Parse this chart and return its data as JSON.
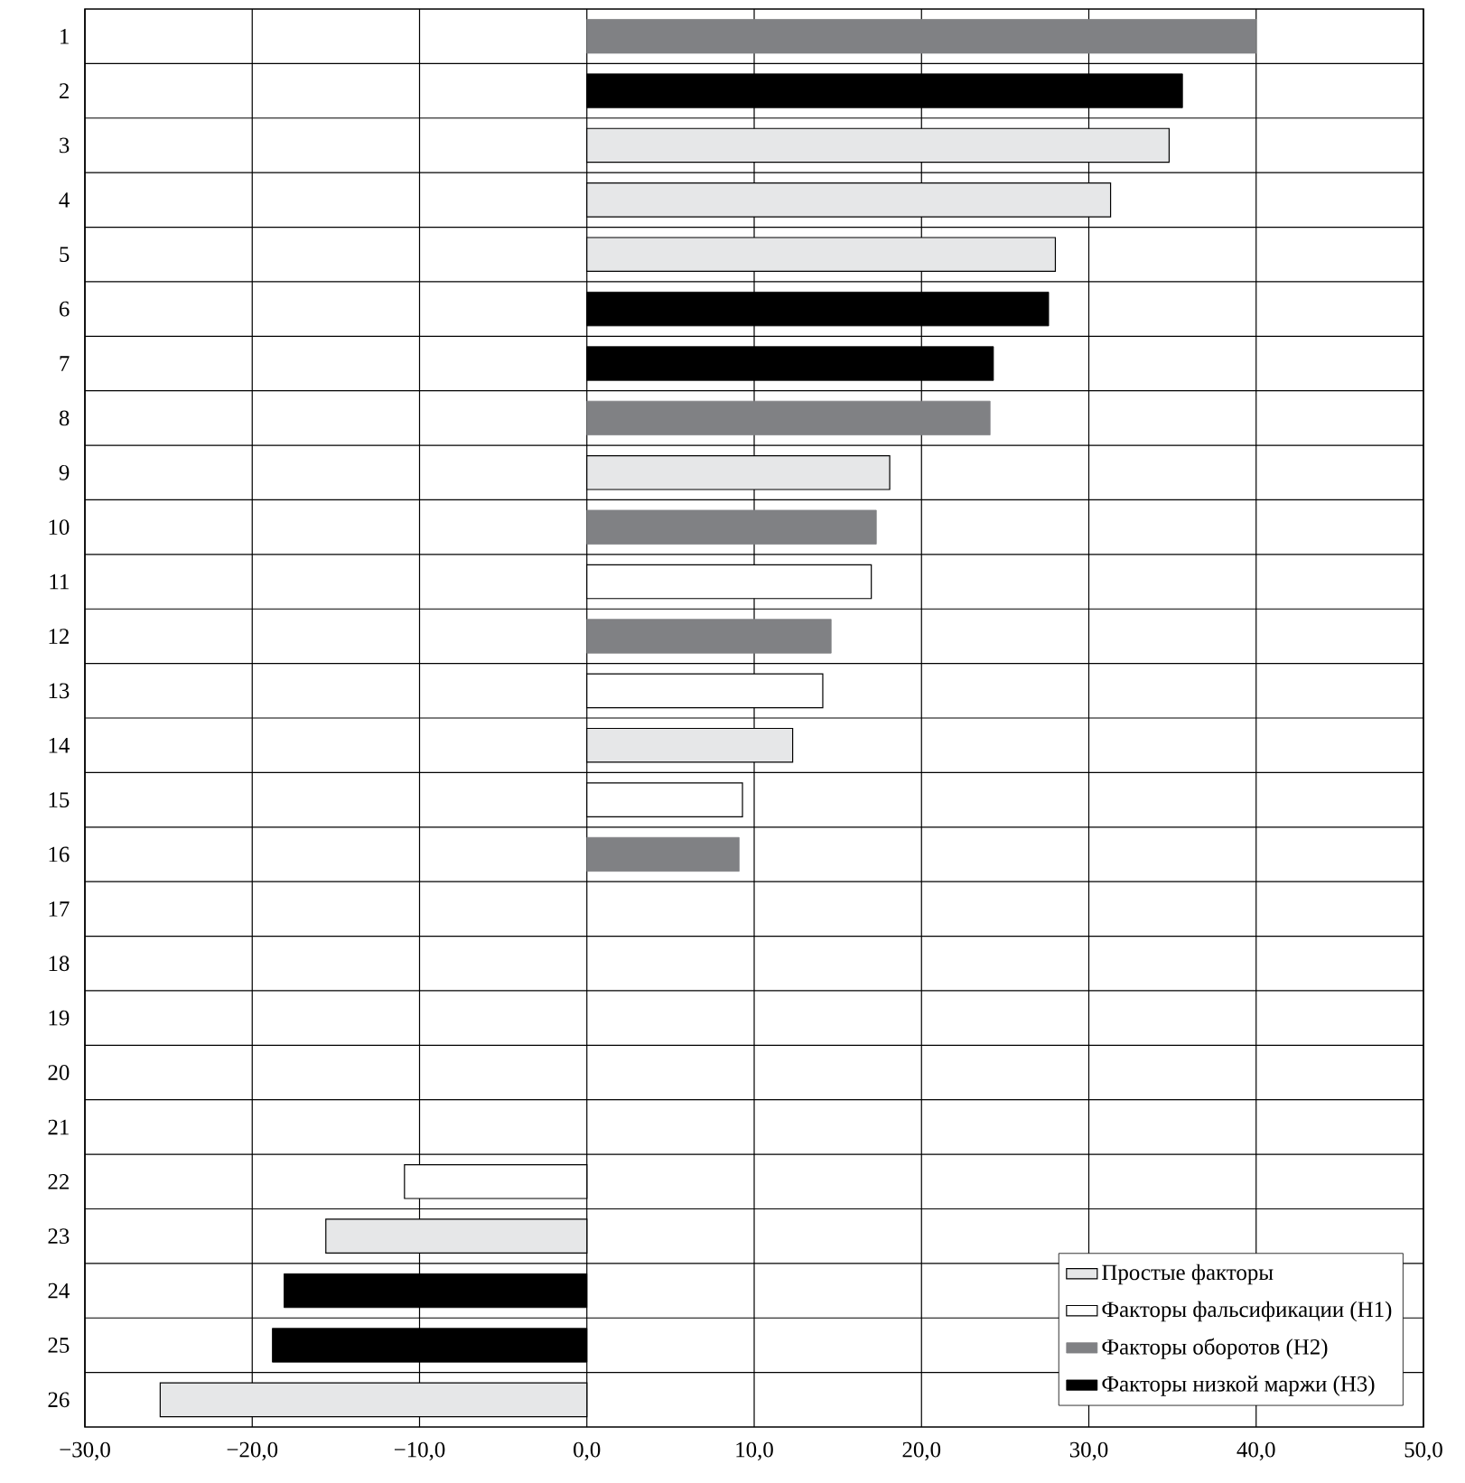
{
  "chart_data": {
    "type": "bar",
    "orientation": "horizontal",
    "categories": [
      "1",
      "2",
      "3",
      "4",
      "5",
      "6",
      "7",
      "8",
      "9",
      "10",
      "11",
      "12",
      "13",
      "14",
      "15",
      "16",
      "17",
      "18",
      "19",
      "20",
      "21",
      "22",
      "23",
      "24",
      "25",
      "26"
    ],
    "series": [
      {
        "name": "Простые факторы",
        "color": "#e6e7e8",
        "values": [
          null,
          null,
          34.8,
          31.3,
          28.0,
          null,
          null,
          null,
          18.1,
          null,
          null,
          null,
          null,
          12.3,
          null,
          null,
          null,
          null,
          null,
          null,
          null,
          null,
          -15.6,
          null,
          null,
          -25.5
        ]
      },
      {
        "name": "Факторы фальсификации (H1)",
        "color": "#ffffff",
        "values": [
          null,
          null,
          null,
          null,
          null,
          null,
          null,
          null,
          null,
          null,
          17.0,
          null,
          14.1,
          null,
          9.3,
          null,
          null,
          null,
          null,
          null,
          null,
          -10.9,
          null,
          null,
          null,
          null
        ]
      },
      {
        "name": "Факторы оборотов (H2)",
        "color": "#808184",
        "values": [
          40.0,
          null,
          null,
          null,
          null,
          null,
          null,
          24.1,
          null,
          17.3,
          null,
          14.6,
          null,
          null,
          null,
          9.1,
          null,
          null,
          null,
          null,
          null,
          null,
          null,
          null,
          null,
          null
        ]
      },
      {
        "name": "Факторы низкой маржи (H3)",
        "color": "#000000",
        "values": [
          null,
          35.6,
          null,
          null,
          null,
          27.6,
          24.3,
          null,
          null,
          null,
          null,
          null,
          null,
          null,
          null,
          null,
          null,
          null,
          null,
          null,
          null,
          null,
          null,
          -18.1,
          -18.8,
          null
        ]
      }
    ],
    "xlim": [
      -30,
      50
    ],
    "xticks": [
      {
        "value": -30,
        "label": "−30,0"
      },
      {
        "value": -20,
        "label": "−20,0"
      },
      {
        "value": -10,
        "label": "−10,0"
      },
      {
        "value": 0,
        "label": "0,0"
      },
      {
        "value": 10,
        "label": "10,0"
      },
      {
        "value": 20,
        "label": "20,0"
      },
      {
        "value": 30,
        "label": "30,0"
      },
      {
        "value": 40,
        "label": "40,0"
      },
      {
        "value": 50,
        "label": "50,0"
      }
    ],
    "grid": true,
    "legend": "bottom right"
  }
}
